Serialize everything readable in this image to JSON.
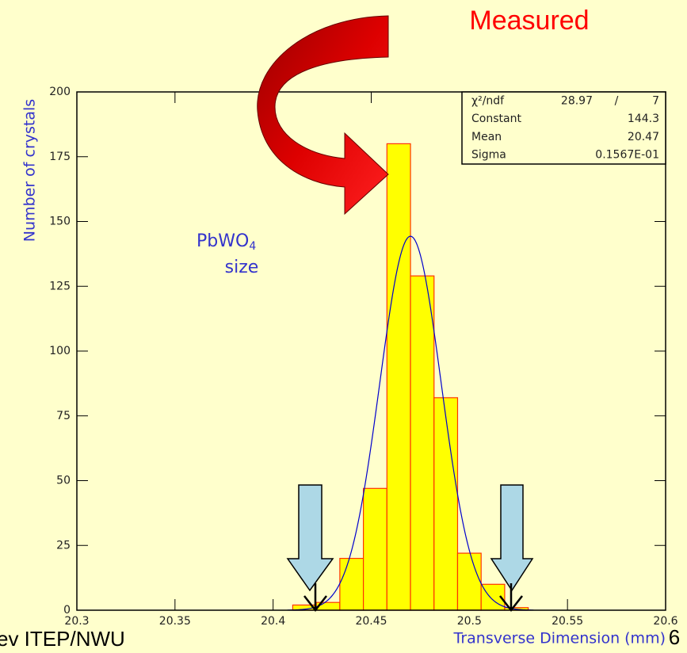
{
  "chart_data": {
    "type": "histogram",
    "title": "Measured",
    "annotation": {
      "text": "PbWO",
      "subscript": "4",
      "line2": "size"
    },
    "x_label": "Transverse Dimension (mm)",
    "y_label": "Number of crystals",
    "bins": [
      20.41,
      20.422,
      20.434,
      20.446,
      20.458,
      20.47,
      20.482,
      20.494,
      20.506,
      20.518,
      20.53
    ],
    "values": [
      2,
      3,
      20,
      47,
      180,
      129,
      82,
      22,
      10,
      1
    ],
    "color": "#ffff00",
    "edge_color": "#ff3300",
    "fit_color": "#0000cc",
    "xlim": [
      20.3,
      20.6
    ],
    "xticks": [
      20.3,
      20.35,
      20.4,
      20.45,
      20.5,
      20.55,
      20.6
    ],
    "ylim": [
      0,
      200
    ],
    "yticks": [
      0,
      25,
      50,
      75,
      100,
      125,
      150,
      175,
      200
    ],
    "grid": false,
    "stats": [
      [
        "χ²/ndf",
        "28.97",
        "/",
        "7"
      ],
      [
        "Constant",
        "144.3"
      ],
      [
        "Mean",
        "20.47"
      ],
      [
        "Sigma",
        "0.1567E-01"
      ]
    ]
  },
  "footer": {
    "left": "ev ITEP/NWU",
    "page": "6"
  }
}
